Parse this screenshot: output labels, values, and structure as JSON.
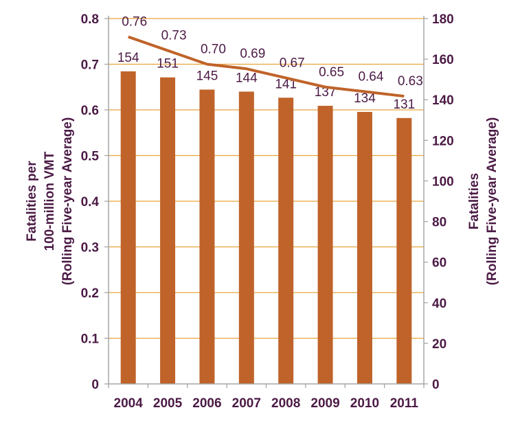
{
  "chart_data": {
    "type": "bar+line",
    "categories": [
      "2004",
      "2005",
      "2006",
      "2007",
      "2008",
      "2009",
      "2010",
      "2011"
    ],
    "series": [
      {
        "type": "bar",
        "axis": "right",
        "values": [
          154,
          151,
          145,
          144,
          141,
          137,
          134,
          131
        ],
        "color": "#bf632a"
      },
      {
        "type": "line",
        "axis": "left",
        "values": [
          0.76,
          0.73,
          0.7,
          0.69,
          0.67,
          0.65,
          0.64,
          0.63
        ],
        "color": "#bf632a"
      }
    ],
    "bar_labels": [
      "154",
      "151",
      "145",
      "144",
      "141",
      "137",
      "134",
      "131"
    ],
    "line_labels": [
      "0.76",
      "0.73",
      "0.70",
      "0.69",
      "0.67",
      "0.65",
      "0.64",
      "0.63"
    ],
    "left_axis": {
      "title_lines": [
        "Fatalities per",
        "100-million VMT",
        "(Rolling Five-year Average)"
      ],
      "range": [
        0,
        0.8
      ],
      "ticks": [
        "0",
        "0.1",
        "0.2",
        "0.3",
        "0.4",
        "0.5",
        "0.6",
        "0.7",
        "0.8"
      ]
    },
    "right_axis": {
      "title_lines": [
        "Fatalities",
        "(Rolling Five-year Average)"
      ],
      "range": [
        0,
        180
      ],
      "ticks": [
        "0",
        "20",
        "40",
        "60",
        "80",
        "100",
        "120",
        "140",
        "160",
        "180"
      ]
    },
    "grid": true,
    "grid_color": "#e8a33a",
    "axis_color": "#a6a6a6",
    "text_color": "#4b1a45"
  }
}
